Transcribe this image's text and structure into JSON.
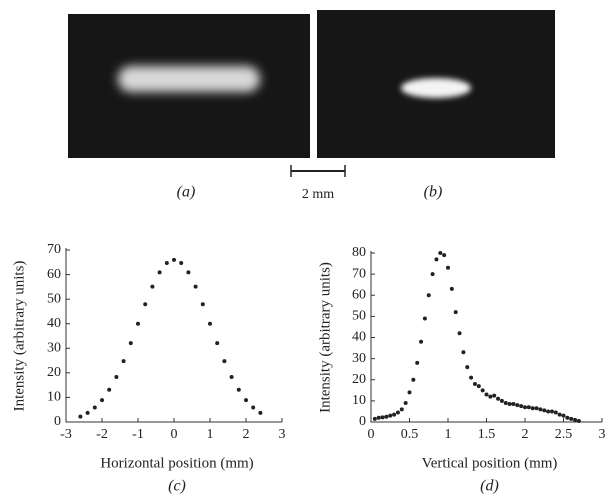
{
  "panels": [
    {
      "label": "(a)"
    },
    {
      "label": "(b)"
    }
  ],
  "scale_bar": "2 mm",
  "chart_data": [
    {
      "type": "scatter",
      "panel_label": "(c)",
      "x_label": "Horizontal position (mm)",
      "y_label": "Intensity (arbitrary units)",
      "xlim": [
        -3,
        3
      ],
      "xticks": [
        -3,
        -2,
        -1,
        0,
        1,
        2,
        3
      ],
      "ylim": [
        0,
        70
      ],
      "yticks": [
        0,
        10,
        20,
        30,
        40,
        50,
        60,
        70
      ],
      "grid": false,
      "color": "#222222",
      "x": [
        -2.6,
        -2.4,
        -2.2,
        -2.0,
        -1.8,
        -1.6,
        -1.4,
        -1.2,
        -1.0,
        -0.8,
        -0.6,
        -0.4,
        -0.2,
        0,
        0.2,
        0.4,
        0.6,
        0.8,
        1.0,
        1.2,
        1.4,
        1.6,
        1.8,
        2.0,
        2.2,
        2.4
      ],
      "values": [
        2.2,
        3.7,
        5.9,
        8.9,
        13.1,
        18.3,
        24.8,
        32.1,
        40.0,
        47.9,
        55.1,
        60.9,
        64.7,
        66,
        64.7,
        60.9,
        55.1,
        47.9,
        40.0,
        32.1,
        24.8,
        18.3,
        13.1,
        8.9,
        5.9,
        3.7
      ]
    },
    {
      "type": "scatter",
      "panel_label": "(d)",
      "x_label": "Vertical position (mm)",
      "y_label": "Intensity (arbitrary units)",
      "xlim": [
        0,
        3
      ],
      "xticks": [
        0,
        0.5,
        1,
        1.5,
        2,
        2.5,
        3
      ],
      "ylim": [
        0,
        80
      ],
      "yticks": [
        0,
        10,
        20,
        30,
        40,
        50,
        60,
        70,
        80
      ],
      "grid": false,
      "color": "#222222",
      "x": [
        0.05,
        0.1,
        0.15,
        0.2,
        0.25,
        0.3,
        0.35,
        0.4,
        0.45,
        0.5,
        0.55,
        0.6,
        0.65,
        0.7,
        0.75,
        0.8,
        0.85,
        0.9,
        0.95,
        1.0,
        1.05,
        1.1,
        1.15,
        1.2,
        1.25,
        1.3,
        1.35,
        1.4,
        1.45,
        1.5,
        1.55,
        1.6,
        1.65,
        1.7,
        1.75,
        1.8,
        1.85,
        1.9,
        1.95,
        2.0,
        2.05,
        2.1,
        2.15,
        2.2,
        2.25,
        2.3,
        2.35,
        2.4,
        2.45,
        2.5,
        2.55,
        2.6,
        2.65,
        2.7
      ],
      "values": [
        1.5,
        2,
        2.2,
        2.5,
        3,
        3.5,
        4.5,
        6,
        9,
        14,
        20,
        28,
        38,
        49,
        60,
        70,
        77,
        80,
        79,
        73,
        63,
        52,
        42,
        33,
        26,
        21,
        18,
        17,
        15,
        13,
        12,
        12.5,
        11,
        10,
        9,
        8.5,
        8.5,
        8,
        7.5,
        7,
        7,
        6.5,
        6.5,
        6,
        5.5,
        5,
        5,
        4.5,
        3.5,
        3,
        2,
        1.5,
        1,
        0.5
      ]
    }
  ]
}
